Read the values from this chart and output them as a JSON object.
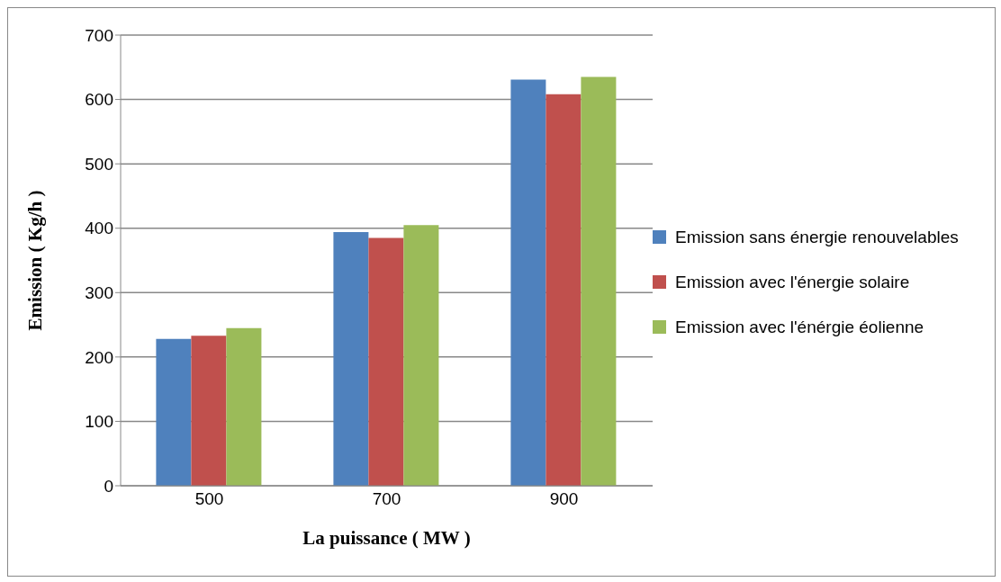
{
  "chart_data": {
    "type": "bar",
    "xlabel": "La puissance ( MW )",
    "ylabel": "Emission ( Kg/h )",
    "categories": [
      "500",
      "700",
      "900"
    ],
    "series": [
      {
        "name": "Emission sans énergie renouvelables",
        "color": "#4f81bd",
        "values": [
          228,
          394,
          631
        ]
      },
      {
        "name": "Emission avec l'énergie solaire",
        "color": "#c0504d",
        "values": [
          233,
          385,
          608
        ]
      },
      {
        "name": "Emission avec l'énérgie éolienne",
        "color": "#9bbb59",
        "values": [
          245,
          405,
          635
        ]
      }
    ],
    "ylim": [
      0,
      700
    ],
    "yticks": [
      0,
      100,
      200,
      300,
      400,
      500,
      600,
      700
    ],
    "grid": "y",
    "legend": "right"
  }
}
